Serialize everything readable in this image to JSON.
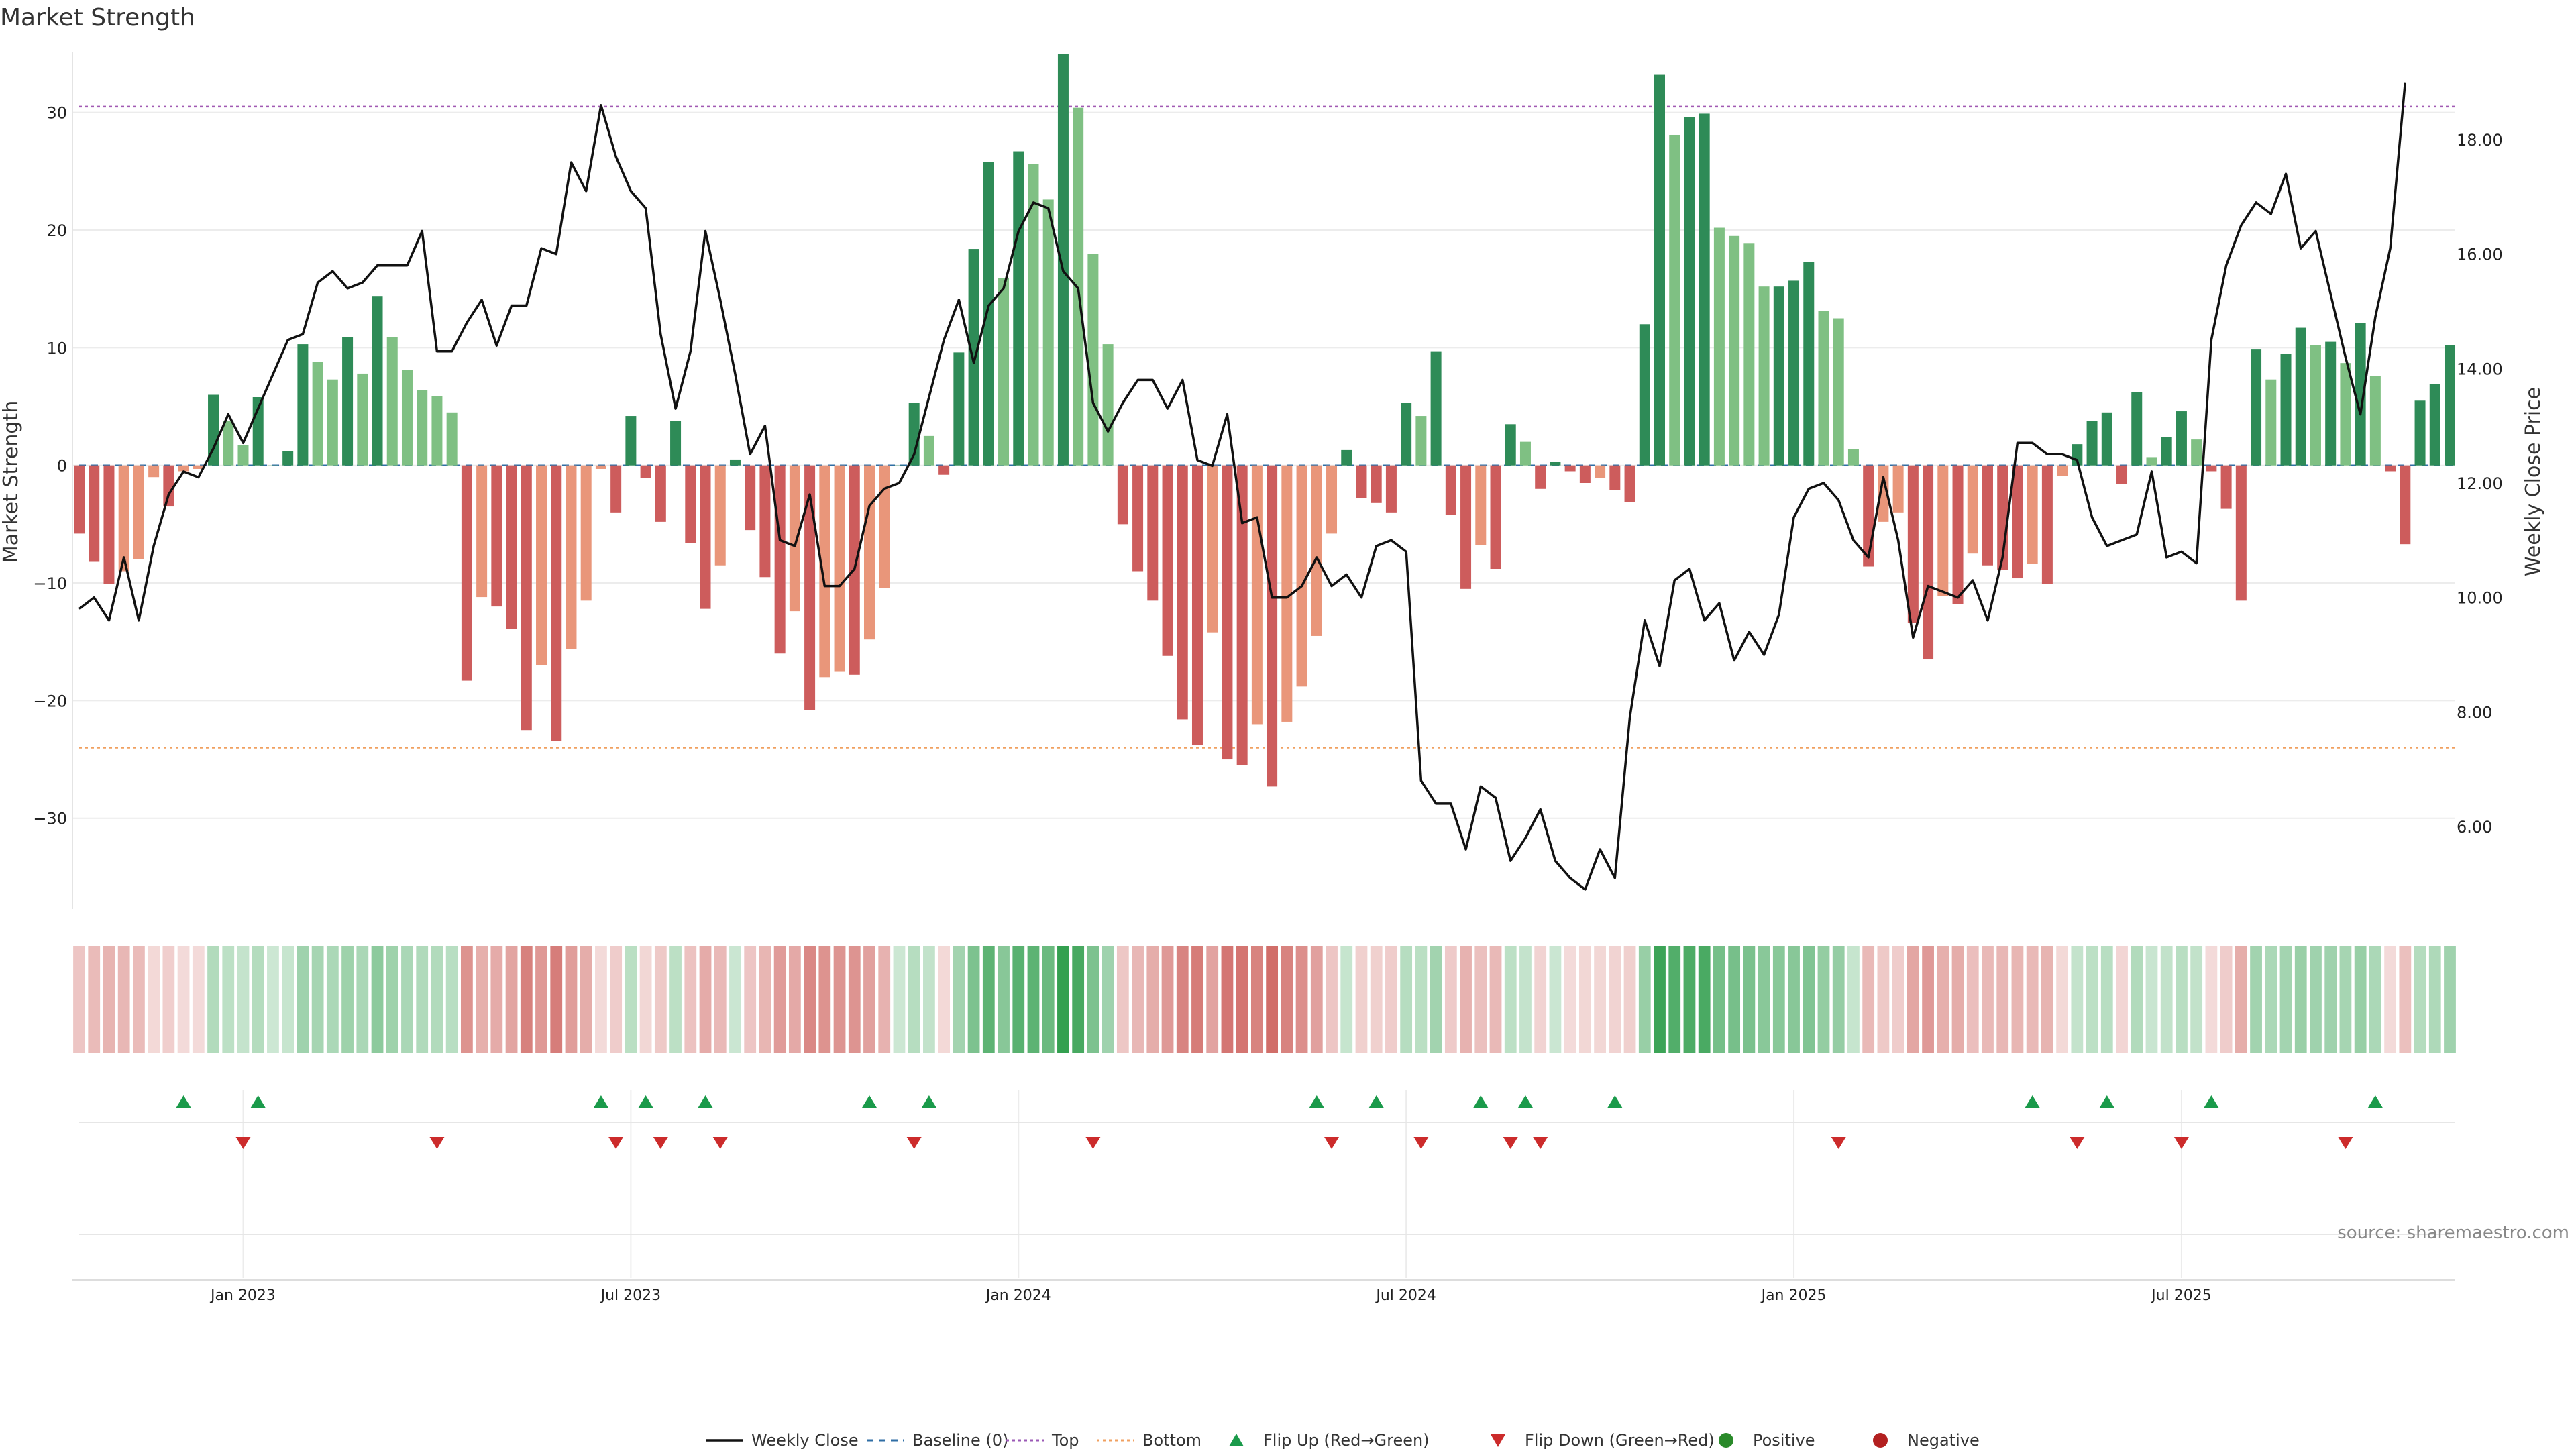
{
  "chart_data": {
    "type": "bar+line",
    "title": "Market Strength",
    "ylabel_left": "Market Strength",
    "ylabel_right": "Weekly Close Price",
    "left_ylim": [
      -38,
      35
    ],
    "left_ticks": [
      -30,
      -20,
      -10,
      0,
      10,
      20,
      30
    ],
    "left_tick_labels": [
      "−30",
      "−20",
      "−10",
      "0",
      "10",
      "20",
      "30"
    ],
    "right_ylim": [
      4.5,
      19.5
    ],
    "right_ticks": [
      6,
      8,
      10,
      12,
      14,
      16,
      18
    ],
    "right_tick_labels": [
      "6.00",
      "8.00",
      "10.00",
      "12.00",
      "14.00",
      "16.00",
      "18.00"
    ],
    "top_line": 30.5,
    "bottom_line": -24,
    "x_ticks": [
      {
        "week": 11,
        "label": "Jan 2023"
      },
      {
        "week": 37,
        "label": "Jul 2023"
      },
      {
        "week": 63,
        "label": "Jan 2024"
      },
      {
        "week": 89,
        "label": "Jul 2024"
      },
      {
        "week": 115,
        "label": "Jan 2025"
      },
      {
        "week": 141,
        "label": "Jul 2025"
      }
    ],
    "strength": [
      -5.8,
      -8.2,
      -10.1,
      -9,
      -8,
      -1,
      -3.5,
      -0.5,
      -0.3,
      6,
      3.8,
      1.7,
      5.8,
      0,
      1.2,
      10.3,
      8.8,
      7.3,
      10.9,
      7.8,
      14.4,
      10.9,
      8.1,
      6.4,
      5.9,
      4.5,
      -18.3,
      -11.2,
      -12,
      -13.9,
      -22.5,
      -17,
      -23.4,
      -15.6,
      -11.5,
      -0.3,
      -4,
      4.2,
      -1.1,
      -4.8,
      3.8,
      -6.6,
      -12.2,
      -8.5,
      0.5,
      -5.5,
      -9.5,
      -16,
      -12.4,
      -20.8,
      -18,
      -17.5,
      -17.8,
      -14.8,
      -10.4,
      0,
      5.3,
      2.5,
      -0.8,
      9.6,
      18.4,
      25.8,
      15.9,
      26.7,
      25.6,
      22.6,
      35,
      30.4,
      18,
      10.3,
      -5,
      -9,
      -11.5,
      -16.2,
      -21.6,
      -23.8,
      -14.2,
      -25,
      -25.5,
      -22,
      -27.3,
      -21.8,
      -18.8,
      -14.5,
      -5.8,
      1.3,
      -2.8,
      -3.2,
      -4,
      5.3,
      4.2,
      9.7,
      -4.2,
      -10.5,
      -6.8,
      -8.8,
      3.5,
      2,
      -2,
      0.3,
      -0.5,
      -1.5,
      -1.1,
      -2.1,
      -3.1,
      12,
      33.2,
      28.1,
      29.6,
      29.9,
      20.2,
      19.5,
      18.9,
      15.2,
      15.2,
      15.7,
      17.3,
      13.1,
      12.5,
      1.4,
      -8.6,
      -4.8,
      -4,
      -13.4,
      -16.5,
      -11.1,
      -11.8,
      -7.5,
      -8.5,
      -8.9,
      -9.6,
      -8.4,
      -10.1,
      -0.9,
      1.8,
      3.8,
      4.5,
      -1.6,
      6.2,
      0.7,
      2.4,
      4.6,
      2.2,
      -0.5,
      -3.7,
      -11.5,
      9.9,
      7.3,
      9.5,
      11.7,
      10.2,
      10.5,
      8.7,
      12.1,
      7.6,
      -0.5,
      -6.7,
      5.5,
      6.9,
      10.2
    ],
    "weekly_close": [
      9.8,
      10.0,
      9.6,
      10.7,
      9.6,
      10.9,
      11.8,
      12.2,
      12.1,
      12.6,
      13.2,
      12.7,
      13.3,
      13.9,
      14.5,
      14.6,
      15.5,
      15.7,
      15.4,
      15.5,
      15.8,
      15.8,
      15.8,
      16.4,
      14.3,
      14.3,
      14.8,
      15.2,
      14.4,
      15.1,
      15.1,
      16.1,
      16.0,
      17.6,
      17.1,
      18.6,
      17.7,
      17.1,
      16.8,
      14.6,
      13.3,
      14.3,
      16.4,
      15.2,
      13.9,
      12.5,
      13.0,
      11.0,
      10.9,
      11.8,
      10.2,
      10.2,
      10.5,
      11.6,
      11.9,
      12.0,
      12.5,
      13.5,
      14.5,
      15.2,
      14.1,
      15.1,
      15.4,
      16.4,
      16.9,
      16.8,
      15.7,
      15.4,
      13.4,
      12.9,
      13.4,
      13.8,
      13.8,
      13.3,
      13.8,
      12.4,
      12.3,
      13.2,
      11.3,
      11.4,
      10.0,
      10.0,
      10.2,
      10.7,
      10.2,
      10.4,
      10.0,
      10.9,
      11.0,
      10.8,
      6.8,
      6.4,
      6.4,
      5.6,
      6.7,
      6.5,
      5.4,
      5.8,
      6.3,
      5.4,
      5.1,
      4.9,
      5.6,
      5.1,
      7.9,
      9.6,
      8.8,
      10.3,
      10.5,
      9.6,
      9.9,
      8.9,
      9.4,
      9.0,
      9.7,
      11.4,
      11.9,
      12.0,
      11.7,
      11.0,
      10.7,
      12.1,
      11.0,
      9.3,
      10.2,
      10.1,
      10.0,
      10.3,
      9.6,
      10.7,
      12.7,
      12.7,
      12.5,
      12.5,
      12.4,
      11.4,
      10.9,
      11.0,
      11.1,
      12.2,
      10.7,
      10.8,
      10.6,
      14.5,
      15.8,
      16.5,
      16.9,
      16.7,
      17.4,
      16.1,
      16.4,
      15.3,
      14.2,
      13.2,
      14.9,
      16.1,
      19.0
    ],
    "flip_up_weeks": [
      7,
      12,
      35,
      38,
      42,
      53,
      57,
      83,
      87,
      94,
      97,
      103,
      131,
      136,
      143,
      154
    ],
    "flip_down_weeks": [
      11,
      24,
      36,
      39,
      43,
      56,
      68,
      84,
      90,
      96,
      98,
      118,
      134,
      141,
      152
    ],
    "legend": [
      {
        "label": "Weekly Close",
        "type": "line",
        "color": "#111111"
      },
      {
        "label": "Baseline (0)",
        "type": "dash",
        "color": "#2f6ea5"
      },
      {
        "label": "Top",
        "type": "dot",
        "color": "#9b59b6"
      },
      {
        "label": "Bottom",
        "type": "dot",
        "color": "#f0a060"
      },
      {
        "label": "Flip Up (Red→Green)",
        "type": "up",
        "color": "#1a9a4a"
      },
      {
        "label": "Flip Down (Green→Red)",
        "type": "down",
        "color": "#cc2b2b"
      },
      {
        "label": "Positive",
        "type": "circle",
        "color": "#2a8a2a"
      },
      {
        "label": "Negative",
        "type": "circle",
        "color": "#b32020"
      }
    ],
    "source": "source: sharemaestro.com"
  }
}
